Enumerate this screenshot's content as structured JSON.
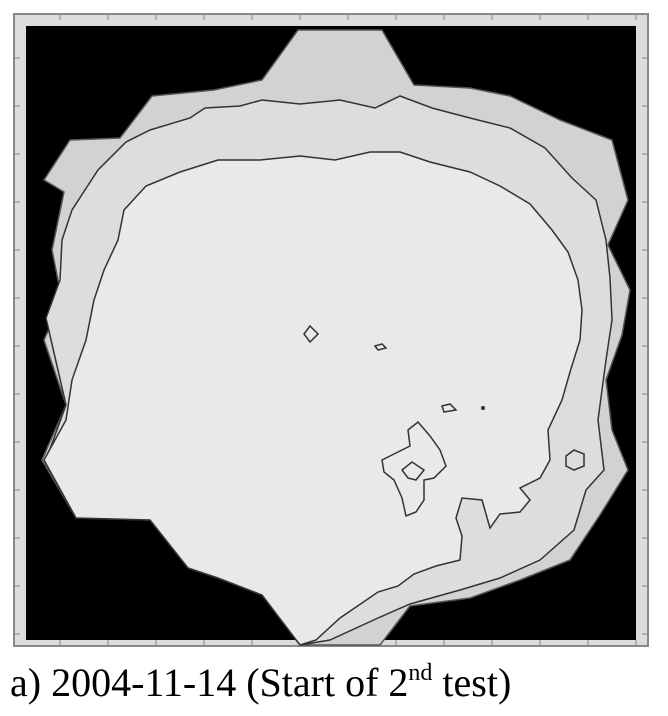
{
  "caption": {
    "label": "a)",
    "date": "2004-11-14",
    "text_before": "(Start of 2",
    "superscript": "nd",
    "text_after": "test)"
  },
  "colors": {
    "background": "#000000",
    "frame": "#dcdcdc",
    "frame_border": "#888888",
    "zone_outer": "#d2d2d2",
    "zone_middle": "#dddddd",
    "zone_inner": "#e9e9e9",
    "contour": "#333333"
  }
}
